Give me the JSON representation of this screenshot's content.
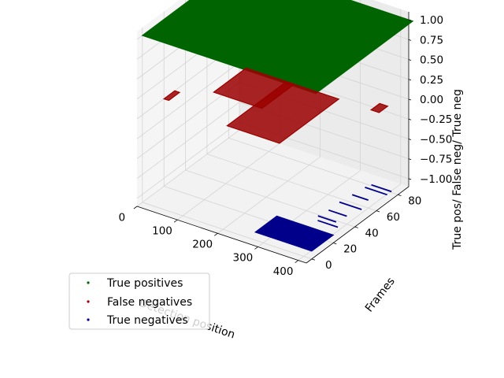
{
  "chart_data": {
    "type": "scatter",
    "projection": "3d",
    "xlabel": "Detection position",
    "ylabel": "Frames",
    "zlabel": "True pos/ False neg/ True neg",
    "x_ticks": [
      "0",
      "100",
      "200",
      "300",
      "400"
    ],
    "y_ticks": [
      "0",
      "20",
      "40",
      "60",
      "80"
    ],
    "z_ticks": [
      "−1.00",
      "−0.75",
      "−0.50",
      "−0.25",
      "0.00",
      "0.25",
      "0.50",
      "0.75",
      "1.00"
    ],
    "xlim": [
      0,
      420
    ],
    "ylim": [
      -5,
      90
    ],
    "zlim": [
      -1.1,
      1.1
    ],
    "grid": true,
    "legend_position": "lower-left",
    "series": [
      {
        "name": "True positives",
        "color": "#006400",
        "z": 1,
        "regions": [
          {
            "x": [
              0,
              430
            ],
            "y": [
              0,
              90
            ]
          }
        ]
      },
      {
        "name": "False negatives",
        "color": "#9b0000",
        "z": 0,
        "regions": [
          {
            "x": [
              0,
              12
            ],
            "y": [
              20,
              30
            ]
          },
          {
            "x": [
              70,
              190
            ],
            "y": [
              40,
              70
            ]
          },
          {
            "x": [
              170,
              300
            ],
            "y": [
              15,
              70
            ]
          },
          {
            "x": [
              380,
              400
            ],
            "y": [
              70,
              78
            ]
          }
        ]
      },
      {
        "name": "True negatives",
        "color": "#00008b",
        "z": -1,
        "regions": [
          {
            "x": [
              280,
              420
            ],
            "y": [
              0,
              20
            ]
          }
        ],
        "segments": [
          {
            "x": [
              360,
              410
            ],
            "y": 28
          },
          {
            "x": [
              350,
              395
            ],
            "y": 32
          },
          {
            "x": [
              355,
              400
            ],
            "y": 40
          },
          {
            "x": [
              355,
              410
            ],
            "y": 50
          },
          {
            "x": [
              360,
              400
            ],
            "y": 60
          },
          {
            "x": [
              365,
              420
            ],
            "y": 70
          },
          {
            "x": [
              370,
              420
            ],
            "y": 74
          }
        ]
      }
    ]
  }
}
